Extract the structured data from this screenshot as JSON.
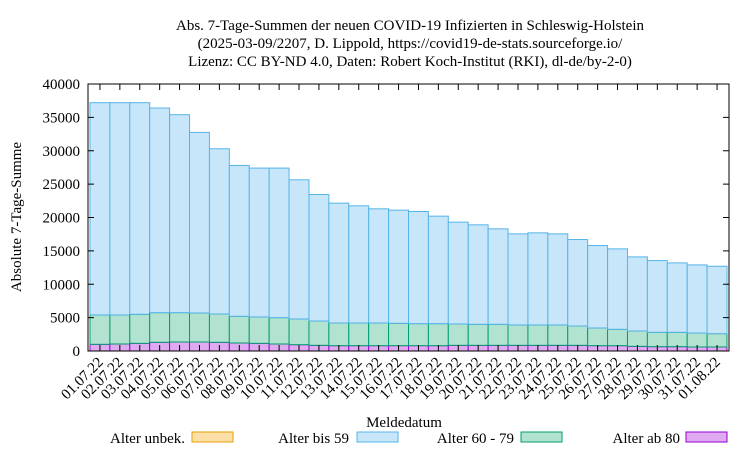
{
  "chart_data": {
    "type": "bar",
    "stacked": true,
    "title_lines": [
      "Abs. 7-Tage-Summen der neuen COVID-19 Infizierten in Schleswig-Holstein",
      "(2025-03-09/2207, D. Lippold, https://covid19-de-stats.sourceforge.io/",
      "Lizenz: CC BY-ND 4.0, Daten: Robert Koch-Institut (RKI), dl-de/by-2-0)"
    ],
    "xlabel": "Meldedatum",
    "ylabel": "Absolute 7-Tage-Summe",
    "ylim": [
      0,
      40000
    ],
    "yticks": [
      0,
      5000,
      10000,
      15000,
      20000,
      25000,
      30000,
      35000,
      40000
    ],
    "grid": false,
    "legend_position": "bottom",
    "categories": [
      "01.07.22",
      "02.07.22",
      "03.07.22",
      "04.07.22",
      "05.07.22",
      "06.07.22",
      "07.07.22",
      "08.07.22",
      "09.07.22",
      "10.07.22",
      "11.07.22",
      "12.07.22",
      "13.07.22",
      "14.07.22",
      "15.07.22",
      "16.07.22",
      "17.07.22",
      "18.07.22",
      "19.07.22",
      "20.07.22",
      "21.07.22",
      "22.07.22",
      "23.07.22",
      "24.07.22",
      "25.07.22",
      "26.07.22",
      "27.07.22",
      "28.07.22",
      "29.07.22",
      "30.07.22",
      "31.07.22",
      "01.08.22"
    ],
    "series": [
      {
        "name": "Alter ab 80",
        "fill": "#e0aaf0",
        "stroke": "#9400d3",
        "values": [
          1000,
          1050,
          1150,
          1300,
          1350,
          1350,
          1300,
          1200,
          1150,
          1050,
          950,
          850,
          800,
          800,
          800,
          800,
          800,
          800,
          850,
          850,
          850,
          850,
          850,
          850,
          850,
          800,
          800,
          700,
          650,
          650,
          600,
          600
        ]
      },
      {
        "name": "Alter 60 - 79",
        "fill": "#b2e2d0",
        "stroke": "#009e73",
        "values": [
          4400,
          4350,
          4350,
          4450,
          4400,
          4350,
          4250,
          4000,
          3950,
          3950,
          3850,
          3650,
          3400,
          3400,
          3400,
          3350,
          3300,
          3300,
          3200,
          3150,
          3150,
          3050,
          3050,
          3050,
          2900,
          2650,
          2450,
          2300,
          2150,
          2150,
          2100,
          2000
        ]
      },
      {
        "name": "Alter bis 59",
        "fill": "#c8e6fa",
        "stroke": "#56b4e9",
        "values": [
          31800,
          31800,
          31700,
          30650,
          29650,
          27050,
          24750,
          22600,
          22300,
          22400,
          20850,
          18950,
          17950,
          17550,
          17100,
          16950,
          16800,
          16100,
          15250,
          14900,
          14300,
          13650,
          13800,
          13650,
          12950,
          12350,
          12050,
          11100,
          10750,
          10400,
          10200,
          10100
        ]
      },
      {
        "name": "Alter unbek.",
        "fill": "#fde0a8",
        "stroke": "#e69f00",
        "values": [
          0,
          0,
          0,
          0,
          0,
          0,
          0,
          0,
          0,
          0,
          0,
          0,
          0,
          0,
          0,
          0,
          0,
          0,
          0,
          0,
          0,
          0,
          0,
          0,
          0,
          0,
          0,
          0,
          0,
          0,
          0,
          0
        ]
      }
    ],
    "legend_order": [
      "Alter unbek.",
      "Alter bis 59",
      "Alter 60 - 79",
      "Alter ab 80"
    ]
  }
}
